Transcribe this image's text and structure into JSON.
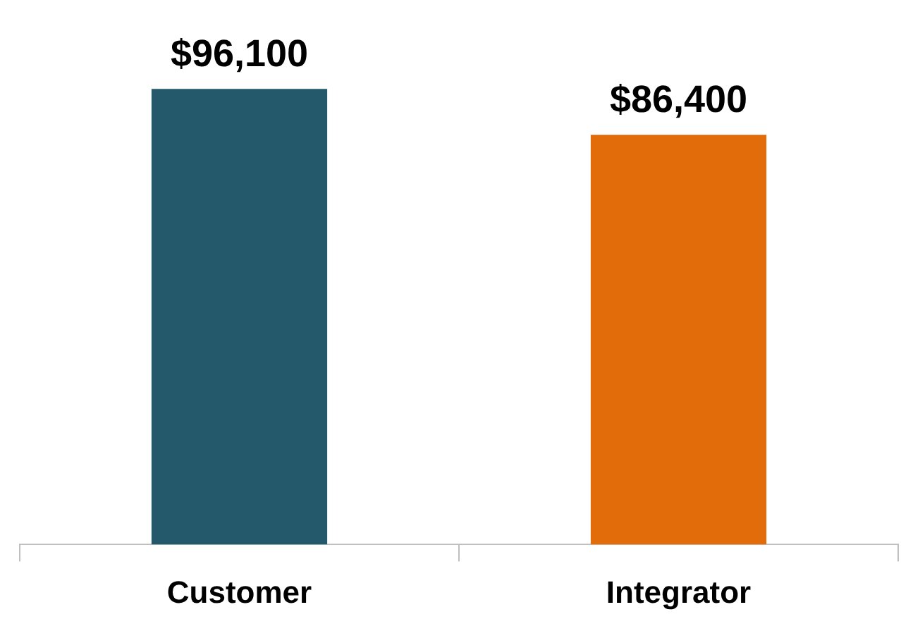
{
  "chart_data": {
    "type": "bar",
    "categories": [
      "Customer",
      "Integrator"
    ],
    "values": [
      96100,
      86400
    ],
    "colors": [
      "#23596a",
      "#e36c0a"
    ],
    "value_labels": [
      "$96,100",
      "$86,400"
    ],
    "grid": false,
    "legend": false
  }
}
